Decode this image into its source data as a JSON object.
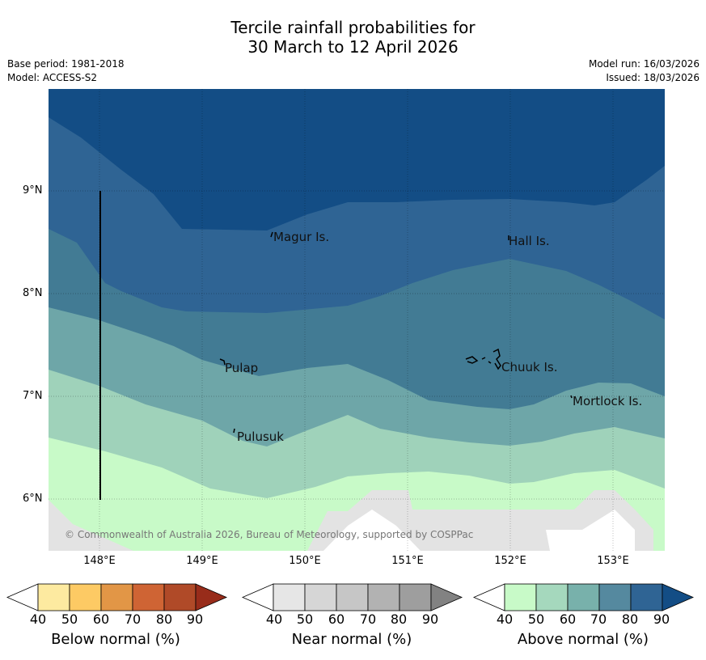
{
  "title": {
    "line1": "Tercile rainfall probabilities for",
    "line2": "30 March to 12 April 2026"
  },
  "meta": {
    "base_period": "Base period: 1981-2018",
    "model": "Model: ACCESS-S2",
    "model_run": "Model run: 16/03/2026",
    "issued": "Issued: 18/03/2026"
  },
  "map": {
    "lat_labels": [
      "9°N",
      "8°N",
      "7°N",
      "6°N"
    ],
    "lon_labels": [
      "148°E",
      "149°E",
      "150°E",
      "151°E",
      "152°E",
      "153°E"
    ],
    "places": {
      "magur": "Magur Is.",
      "hall": "Hall Is.",
      "pulap": "Pulap",
      "chuuk": "Chuuk Is.",
      "mortlock": "Mortlock Is.",
      "pulusuk": "Pulusuk"
    },
    "copyright": "© Commonwealth of Australia 2026, Bureau of Meteorology, supported by COSPPac",
    "colors": {
      "above_40": "#c8fac8",
      "above_50": "#9fd2ba",
      "above_60": "#6ea6a8",
      "above_70": "#427b94",
      "above_80": "#2f6494",
      "above_90": "#134d85",
      "no_data": "#e3e3e3"
    }
  },
  "legends": {
    "below": {
      "label": "Below normal (%)",
      "ticks": [
        "40",
        "50",
        "60",
        "70",
        "80",
        "90"
      ],
      "colors": [
        "#ffffff",
        "#fdeaa0",
        "#fdca64",
        "#e29646",
        "#cf6434",
        "#b04a28",
        "#982c1a"
      ]
    },
    "near": {
      "label": "Near normal (%)",
      "ticks": [
        "40",
        "50",
        "60",
        "70",
        "80",
        "90"
      ],
      "colors": [
        "#ffffff",
        "#e6e6e6",
        "#d6d6d6",
        "#c6c6c6",
        "#b2b2b2",
        "#9e9e9e",
        "#828282"
      ]
    },
    "above": {
      "label": "Above normal (%)",
      "ticks": [
        "40",
        "50",
        "60",
        "70",
        "80",
        "90"
      ],
      "colors": [
        "#ffffff",
        "#c8fac8",
        "#a5d8bd",
        "#78b1ab",
        "#55899f",
        "#2f6494",
        "#134d85"
      ]
    }
  }
}
